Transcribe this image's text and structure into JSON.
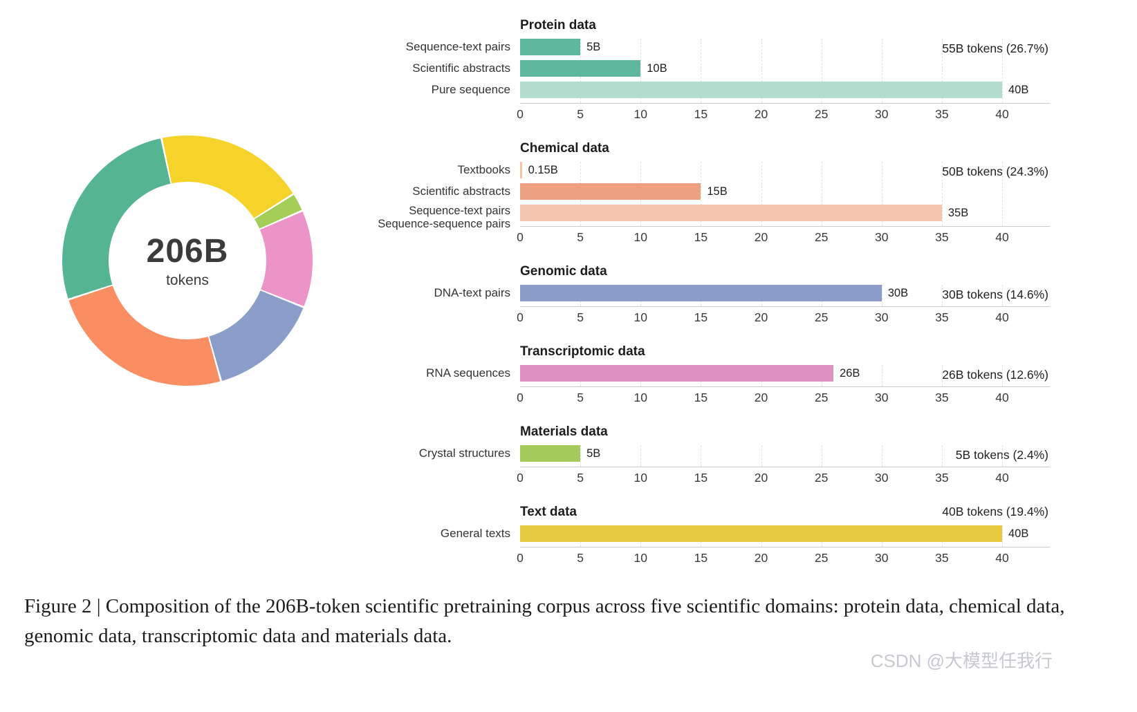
{
  "figure": {
    "caption": "Figure 2 | Composition of the 206B-token scientific pretraining corpus across five scientific domains: protein data, chemical data, genomic data, transcriptomic data and materials data.",
    "watermark": "CSDN @大模型任我行"
  },
  "chart_data": [
    {
      "type": "pie",
      "donut": true,
      "title": "206B tokens",
      "center_value": "206B",
      "center_label": "tokens",
      "start_angle_deg": -12,
      "segments": [
        {
          "label": "Text data",
          "value": 19.4,
          "color": "#f6d32b"
        },
        {
          "label": "Materials data",
          "value": 2.4,
          "color": "#a5ce58"
        },
        {
          "label": "Transcriptomic data",
          "value": 12.6,
          "color": "#ec93c8"
        },
        {
          "label": "Genomic data",
          "value": 14.6,
          "color": "#8b9dc9"
        },
        {
          "label": "Chemical data",
          "value": 24.3,
          "color": "#fa8e63"
        },
        {
          "label": "Protein data",
          "value": 26.7,
          "color": "#55b593"
        }
      ]
    },
    {
      "type": "bar",
      "title": "Protein data",
      "total_label": "55B tokens (26.7%)",
      "total_on_title_row": false,
      "xmax": 40,
      "xticks": [
        0,
        5,
        10,
        15,
        20,
        25,
        30,
        35,
        40
      ],
      "bars": [
        {
          "label_lines": [
            "Sequence-text pairs"
          ],
          "value": 5,
          "value_label": "5B",
          "color": "#5fb89d"
        },
        {
          "label_lines": [
            "Scientific abstracts"
          ],
          "value": 10,
          "value_label": "10B",
          "color": "#5fb89d"
        },
        {
          "label_lines": [
            "Pure sequence"
          ],
          "value": 40,
          "value_label": "40B",
          "color": "#b2dccd"
        }
      ]
    },
    {
      "type": "bar",
      "title": "Chemical data",
      "total_label": "50B tokens (24.3%)",
      "total_on_title_row": false,
      "xmax": 40,
      "xticks": [
        0,
        5,
        10,
        15,
        20,
        25,
        30,
        35,
        40
      ],
      "bars": [
        {
          "label_lines": [
            "Textbooks"
          ],
          "value": 0.15,
          "value_label": "0.15B",
          "color": "#f3c3ab"
        },
        {
          "label_lines": [
            "Scientific abstracts"
          ],
          "value": 15,
          "value_label": "15B",
          "color": "#eea182"
        },
        {
          "label_lines": [
            "Sequence-text pairs",
            "Sequence-sequence pairs"
          ],
          "value": 35,
          "value_label": "35B",
          "color": "#f3c6ae"
        }
      ]
    },
    {
      "type": "bar",
      "title": "Genomic data",
      "total_label": "30B tokens (14.6%)",
      "total_on_title_row": false,
      "xmax": 40,
      "xticks": [
        0,
        5,
        10,
        15,
        20,
        25,
        30,
        35,
        40
      ],
      "bars": [
        {
          "label_lines": [
            "DNA-text pairs"
          ],
          "value": 30,
          "value_label": "30B",
          "color": "#8b9cc8"
        }
      ]
    },
    {
      "type": "bar",
      "title": "Transcriptomic data",
      "total_label": "26B tokens (12.6%)",
      "total_on_title_row": false,
      "xmax": 40,
      "xticks": [
        0,
        5,
        10,
        15,
        20,
        25,
        30,
        35,
        40
      ],
      "bars": [
        {
          "label_lines": [
            "RNA sequences"
          ],
          "value": 26,
          "value_label": "26B",
          "color": "#e091c4"
        }
      ]
    },
    {
      "type": "bar",
      "title": "Materials data",
      "total_label": "5B tokens (2.4%)",
      "total_on_title_row": false,
      "xmax": 40,
      "xticks": [
        0,
        5,
        10,
        15,
        20,
        25,
        30,
        35,
        40
      ],
      "bars": [
        {
          "label_lines": [
            "Crystal structures"
          ],
          "value": 5,
          "value_label": "5B",
          "color": "#a4cb5c"
        }
      ]
    },
    {
      "type": "bar",
      "title": "Text data",
      "total_label": "40B tokens (19.4%)",
      "total_on_title_row": true,
      "xmax": 40,
      "xticks": [
        0,
        5,
        10,
        15,
        20,
        25,
        30,
        35,
        40
      ],
      "bars": [
        {
          "label_lines": [
            "General texts"
          ],
          "value": 40,
          "value_label": "40B",
          "color": "#e3ca3e"
        }
      ]
    }
  ]
}
